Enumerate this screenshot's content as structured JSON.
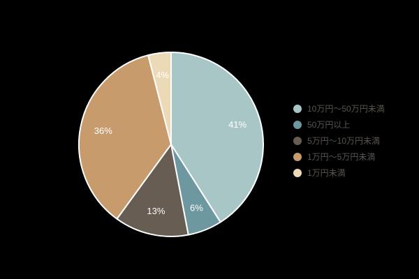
{
  "background_color": "#000000",
  "chart_data": {
    "type": "pie",
    "title": "",
    "legend_position": "right",
    "start_angle": 0,
    "direction": "clockwise",
    "slice_border_color": "#ffffff",
    "label_color": "#ffffff",
    "legend_text_color": "#5a554e",
    "series": [
      {
        "label": "10万円～50万円未満",
        "value": 41,
        "pct": "41%",
        "color": "#a9c6c6"
      },
      {
        "label": "50万円以上",
        "value": 6,
        "pct": "6%",
        "color": "#6d98a0"
      },
      {
        "label": "5万円～10万円未満",
        "value": 13,
        "pct": "13%",
        "color": "#675d53"
      },
      {
        "label": "1万円～5万円未満",
        "value": 36,
        "pct": "36%",
        "color": "#c79b6c"
      },
      {
        "label": "1万円未満",
        "value": 4,
        "pct": "4%",
        "color": "#ecd9b6"
      }
    ]
  }
}
